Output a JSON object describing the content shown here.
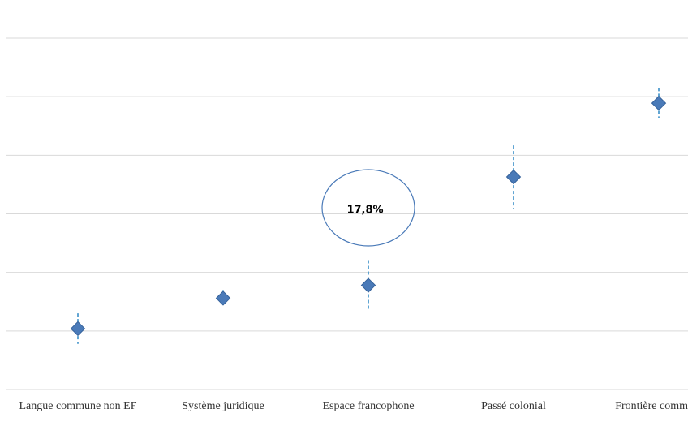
{
  "chart_data": {
    "type": "errorbar",
    "categories": [
      "Langue commune non EF",
      "Système juridique",
      "Espace francophone",
      "Passé colonial",
      "Frontière comm"
    ],
    "values": [
      10.4,
      15.6,
      17.8,
      36.3,
      48.9
    ],
    "errors": [
      2.6,
      1.4,
      4.3,
      5.4,
      2.6
    ],
    "annotation": "17,8%",
    "color": "#4a7ab8",
    "ylim": [
      0,
      60
    ],
    "yticks": [
      0,
      10,
      20,
      30,
      40,
      50,
      60
    ],
    "grid": true
  }
}
